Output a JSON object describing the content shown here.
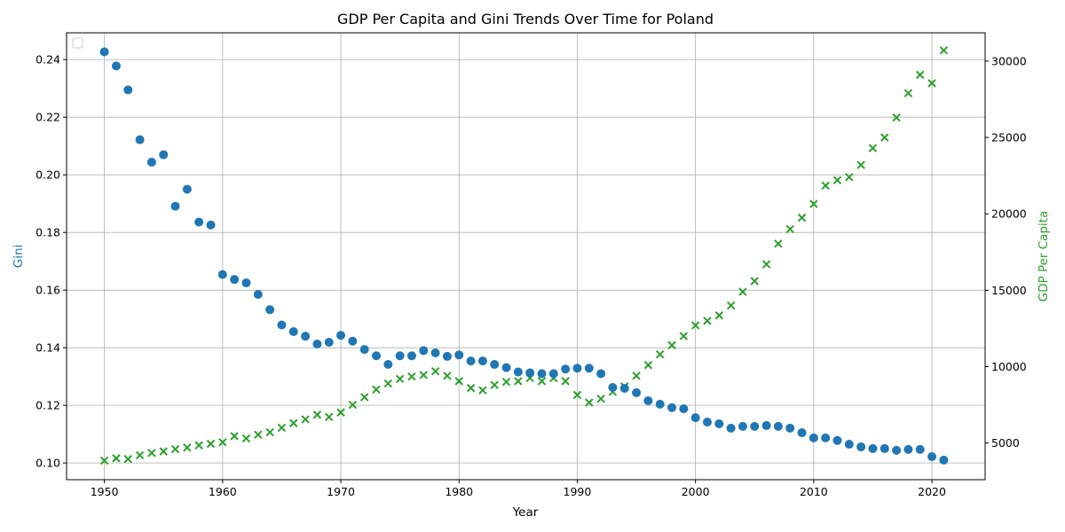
{
  "chart_data": {
    "type": "scatter",
    "title": "GDP Per Capita and Gini Trends Over Time for Poland",
    "xlabel": "Year",
    "ylabel_left": "Gini",
    "ylabel_right": "GDP Per Capita",
    "xlim": [
      1946.8,
      2024.5
    ],
    "ylim_left": [
      0.0942,
      0.2493
    ],
    "ylim_right": [
      2600,
      31850
    ],
    "x_ticks": [
      1950,
      1960,
      1970,
      1980,
      1990,
      2000,
      2010,
      2020
    ],
    "y_left_ticks": [
      0.1,
      0.12,
      0.14,
      0.16,
      0.18,
      0.2,
      0.22,
      0.24
    ],
    "y_left_tick_labels": [
      "0.10",
      "0.12",
      "0.14",
      "0.16",
      "0.18",
      "0.20",
      "0.22",
      "0.24"
    ],
    "y_right_ticks": [
      5000,
      10000,
      15000,
      20000,
      25000,
      30000
    ],
    "grid": true,
    "legend": "top-left (empty)",
    "colors": {
      "gini": "#1f77b4",
      "gdp": "#2ca02c"
    },
    "x": [
      1950,
      1951,
      1952,
      1953,
      1954,
      1955,
      1956,
      1957,
      1958,
      1959,
      1960,
      1961,
      1962,
      1963,
      1964,
      1965,
      1966,
      1967,
      1968,
      1969,
      1970,
      1971,
      1972,
      1973,
      1974,
      1975,
      1976,
      1977,
      1978,
      1979,
      1980,
      1981,
      1982,
      1983,
      1984,
      1985,
      1986,
      1987,
      1988,
      1989,
      1990,
      1991,
      1992,
      1993,
      1994,
      1995,
      1996,
      1997,
      1998,
      1999,
      2000,
      2001,
      2002,
      2003,
      2004,
      2005,
      2006,
      2007,
      2008,
      2009,
      2010,
      2011,
      2012,
      2013,
      2014,
      2015,
      2016,
      2017,
      2018,
      2019,
      2020,
      2021
    ],
    "series": [
      {
        "name": "Gini",
        "axis": "left",
        "marker": "circle",
        "values": [
          0.2427,
          0.2378,
          0.2295,
          0.2122,
          0.2044,
          0.207,
          0.1891,
          0.195,
          0.1836,
          0.1826,
          0.1654,
          0.1637,
          0.1625,
          0.1585,
          0.1532,
          0.1479,
          0.1456,
          0.144,
          0.1413,
          0.1419,
          0.1443,
          0.1423,
          0.1394,
          0.1372,
          0.1342,
          0.1372,
          0.1372,
          0.139,
          0.1382,
          0.137,
          0.1375,
          0.1354,
          0.1354,
          0.1342,
          0.1331,
          0.1316,
          0.1313,
          0.131,
          0.131,
          0.1326,
          0.1329,
          0.1329,
          0.131,
          0.1262,
          0.1259,
          0.1244,
          0.1216,
          0.1204,
          0.1192,
          0.1188,
          0.1157,
          0.1142,
          0.1136,
          0.1121,
          0.1127,
          0.1127,
          0.113,
          0.1127,
          0.1121,
          0.1105,
          0.1087,
          0.1087,
          0.1078,
          0.1065,
          0.1056,
          0.105,
          0.105,
          0.1044,
          0.1047,
          0.1047,
          0.1022,
          0.101
        ]
      },
      {
        "name": "GDP Per Capita",
        "axis": "right",
        "marker": "x",
        "values": [
          3850,
          4000,
          3950,
          4200,
          4350,
          4450,
          4600,
          4700,
          4850,
          4950,
          5050,
          5450,
          5300,
          5550,
          5700,
          6000,
          6300,
          6550,
          6850,
          6700,
          7000,
          7500,
          8000,
          8500,
          8900,
          9200,
          9350,
          9450,
          9700,
          9400,
          9050,
          8600,
          8450,
          8800,
          9000,
          9050,
          9250,
          9050,
          9250,
          9050,
          8150,
          7650,
          7900,
          8350,
          8700,
          9400,
          10100,
          10800,
          11400,
          12000,
          12700,
          13000,
          13350,
          14000,
          14900,
          15600,
          16700,
          18050,
          19000,
          19750,
          20650,
          21850,
          22200,
          22400,
          23200,
          24300,
          25000,
          26300,
          27900,
          29100,
          28550,
          30700
        ]
      }
    ]
  }
}
